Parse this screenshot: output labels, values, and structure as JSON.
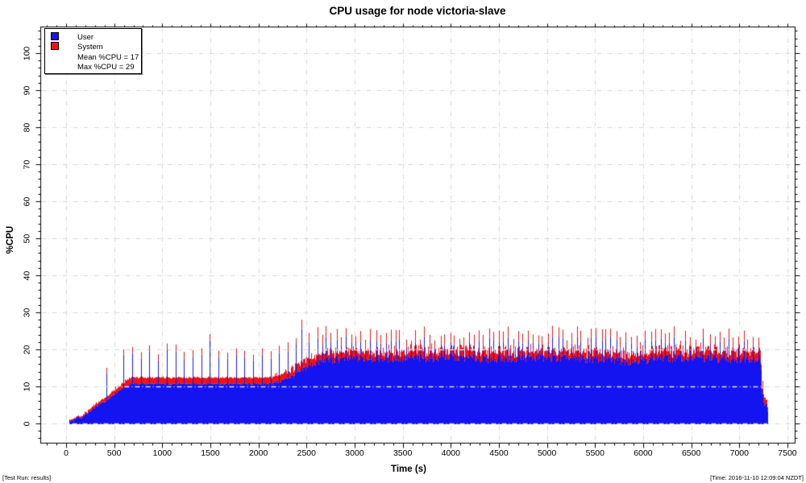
{
  "header": {
    "title": "CPU usage for node victoria-slave"
  },
  "footer": {
    "left": "[Test Run: results]",
    "right": "[Time: 2016-11-10 12:09:04 NZDT]"
  },
  "legend": {
    "items": [
      {
        "label": "User",
        "color": "#1414f0"
      },
      {
        "label": "System",
        "color": "#f01212"
      },
      {
        "label": "Mean %CPU = 17"
      },
      {
        "label": "Max %CPU = 29"
      }
    ]
  },
  "chart_data": {
    "type": "area",
    "subtype": "stacked-impulse",
    "title": "CPU usage for node victoria-slave",
    "xlabel": "Time (s)",
    "ylabel": "%CPU",
    "xlim": [
      0,
      7500
    ],
    "ylim": [
      0,
      100
    ],
    "xticks": [
      0,
      500,
      1000,
      1500,
      2000,
      2500,
      3000,
      3500,
      4000,
      4500,
      5000,
      5500,
      6000,
      6500,
      7000,
      7500
    ],
    "yticks": [
      0,
      10,
      20,
      30,
      40,
      50,
      60,
      70,
      80,
      90,
      100
    ],
    "x_minor_step": 100,
    "y_minor_step": 2,
    "grid": true,
    "legend_position": "top-left",
    "stats": {
      "mean_cpu": 17,
      "max_cpu": 29
    },
    "colors": {
      "user": "#1414f0",
      "system": "#f01212",
      "grid": "#d9d9d9",
      "grid_over_data": "rgba(255,255,255,0.85)",
      "border": "#000000"
    },
    "stacking_note": "system values are thickness stacked on top of user",
    "start_time": 30,
    "end_time": 7298,
    "series": [
      {
        "name": "User",
        "role": "base",
        "points": [
          [
            30,
            0.8
          ],
          [
            70,
            0.9
          ],
          [
            100,
            1.2
          ],
          [
            125,
            1.9
          ],
          [
            150,
            1.4
          ],
          [
            180,
            2.1
          ],
          [
            215,
            2.6
          ],
          [
            245,
            3.1
          ],
          [
            275,
            3.7
          ],
          [
            305,
            4.4
          ],
          [
            335,
            4.9
          ],
          [
            365,
            5.4
          ],
          [
            395,
            5.9
          ],
          [
            425,
            6.2
          ],
          [
            455,
            7.0
          ],
          [
            485,
            7.7
          ],
          [
            515,
            8.3
          ],
          [
            545,
            8.8
          ],
          [
            575,
            9.3
          ],
          [
            605,
            9.7
          ],
          [
            635,
            10.3
          ],
          [
            665,
            10.7
          ],
          [
            2100,
            10.7
          ],
          [
            2180,
            11.1
          ],
          [
            2260,
            11.8
          ],
          [
            2340,
            12.6
          ],
          [
            2420,
            13.7
          ],
          [
            2500,
            15.2
          ],
          [
            2580,
            16.3
          ],
          [
            2700,
            17.0
          ],
          [
            2900,
            17.4
          ],
          [
            3200,
            17.6
          ],
          [
            3600,
            17.6
          ],
          [
            4000,
            17.9
          ],
          [
            4400,
            17.4
          ],
          [
            4800,
            17.8
          ],
          [
            5200,
            17.5
          ],
          [
            5600,
            17.3
          ],
          [
            5900,
            16.8
          ],
          [
            6100,
            17.5
          ],
          [
            6500,
            17.7
          ],
          [
            6900,
            17.4
          ],
          [
            7100,
            17.6
          ],
          [
            7225,
            17.3
          ],
          [
            7238,
            6.5
          ],
          [
            7255,
            5.0
          ],
          [
            7285,
            5.8
          ],
          [
            7298,
            3.0
          ]
        ]
      },
      {
        "name": "System",
        "role": "stacked",
        "points": [
          [
            30,
            0.25
          ],
          [
            200,
            0.35
          ],
          [
            280,
            0.7
          ],
          [
            420,
            1.0
          ],
          [
            600,
            1.4
          ],
          [
            665,
            1.7
          ],
          [
            2100,
            1.7
          ],
          [
            2300,
            1.9
          ],
          [
            2500,
            2.2
          ],
          [
            2700,
            2.1
          ],
          [
            7225,
            2.0
          ],
          [
            7240,
            1.8
          ],
          [
            7298,
            1.2
          ]
        ]
      }
    ],
    "noise_amplitude": [
      [
        30,
        0.3
      ],
      [
        600,
        0.3
      ],
      [
        665,
        0.18
      ],
      [
        2080,
        0.18
      ],
      [
        2160,
        0.5
      ],
      [
        2450,
        0.8
      ],
      [
        2600,
        1.15
      ],
      [
        7225,
        1.15
      ],
      [
        7240,
        0.7
      ],
      [
        7298,
        0.5
      ]
    ],
    "spikes": [
      {
        "t": 425,
        "user": 13.5,
        "total": 15
      },
      {
        "t": 600,
        "user": 18.5,
        "total": 20
      },
      {
        "t": 690,
        "user": 19,
        "total": 20.5
      },
      {
        "t": 780,
        "user": 17.5,
        "total": 19
      },
      {
        "t": 870,
        "user": 19.5,
        "total": 21
      },
      {
        "t": 960,
        "user": 17,
        "total": 18.5
      },
      {
        "t": 1050,
        "user": 20,
        "total": 21.5
      },
      {
        "t": 1140,
        "user": 19.5,
        "total": 21
      },
      {
        "t": 1230,
        "user": 17.5,
        "total": 19
      },
      {
        "t": 1320,
        "user": 18,
        "total": 19.5
      },
      {
        "t": 1410,
        "user": 18.5,
        "total": 20
      },
      {
        "t": 1500,
        "user": 22.5,
        "total": 24
      },
      {
        "t": 1590,
        "user": 18,
        "total": 19.5
      },
      {
        "t": 1680,
        "user": 17.5,
        "total": 19
      },
      {
        "t": 1770,
        "user": 18.5,
        "total": 20
      },
      {
        "t": 1860,
        "user": 18,
        "total": 19.5
      },
      {
        "t": 1950,
        "user": 17,
        "total": 18.5
      },
      {
        "t": 2040,
        "user": 18.5,
        "total": 20
      },
      {
        "t": 2130,
        "user": 17.5,
        "total": 19.5
      },
      {
        "t": 2220,
        "user": 19,
        "total": 21
      },
      {
        "t": 2310,
        "user": 19.5,
        "total": 21.5
      },
      {
        "t": 2390,
        "user": 21.5,
        "total": 23
      },
      {
        "t": 2455,
        "user": 25.5,
        "total": 28
      },
      {
        "t": 2530,
        "user": 22,
        "total": 24.5
      },
      {
        "t": 7245,
        "user": 9.5,
        "total": 11.5
      }
    ],
    "plateau_spikes": {
      "start": 2560,
      "end": 7215,
      "interval": 51,
      "user_min": 19.5,
      "user_max": 23.5,
      "extra_min": 1.8,
      "extra_max": 3.2
    }
  }
}
